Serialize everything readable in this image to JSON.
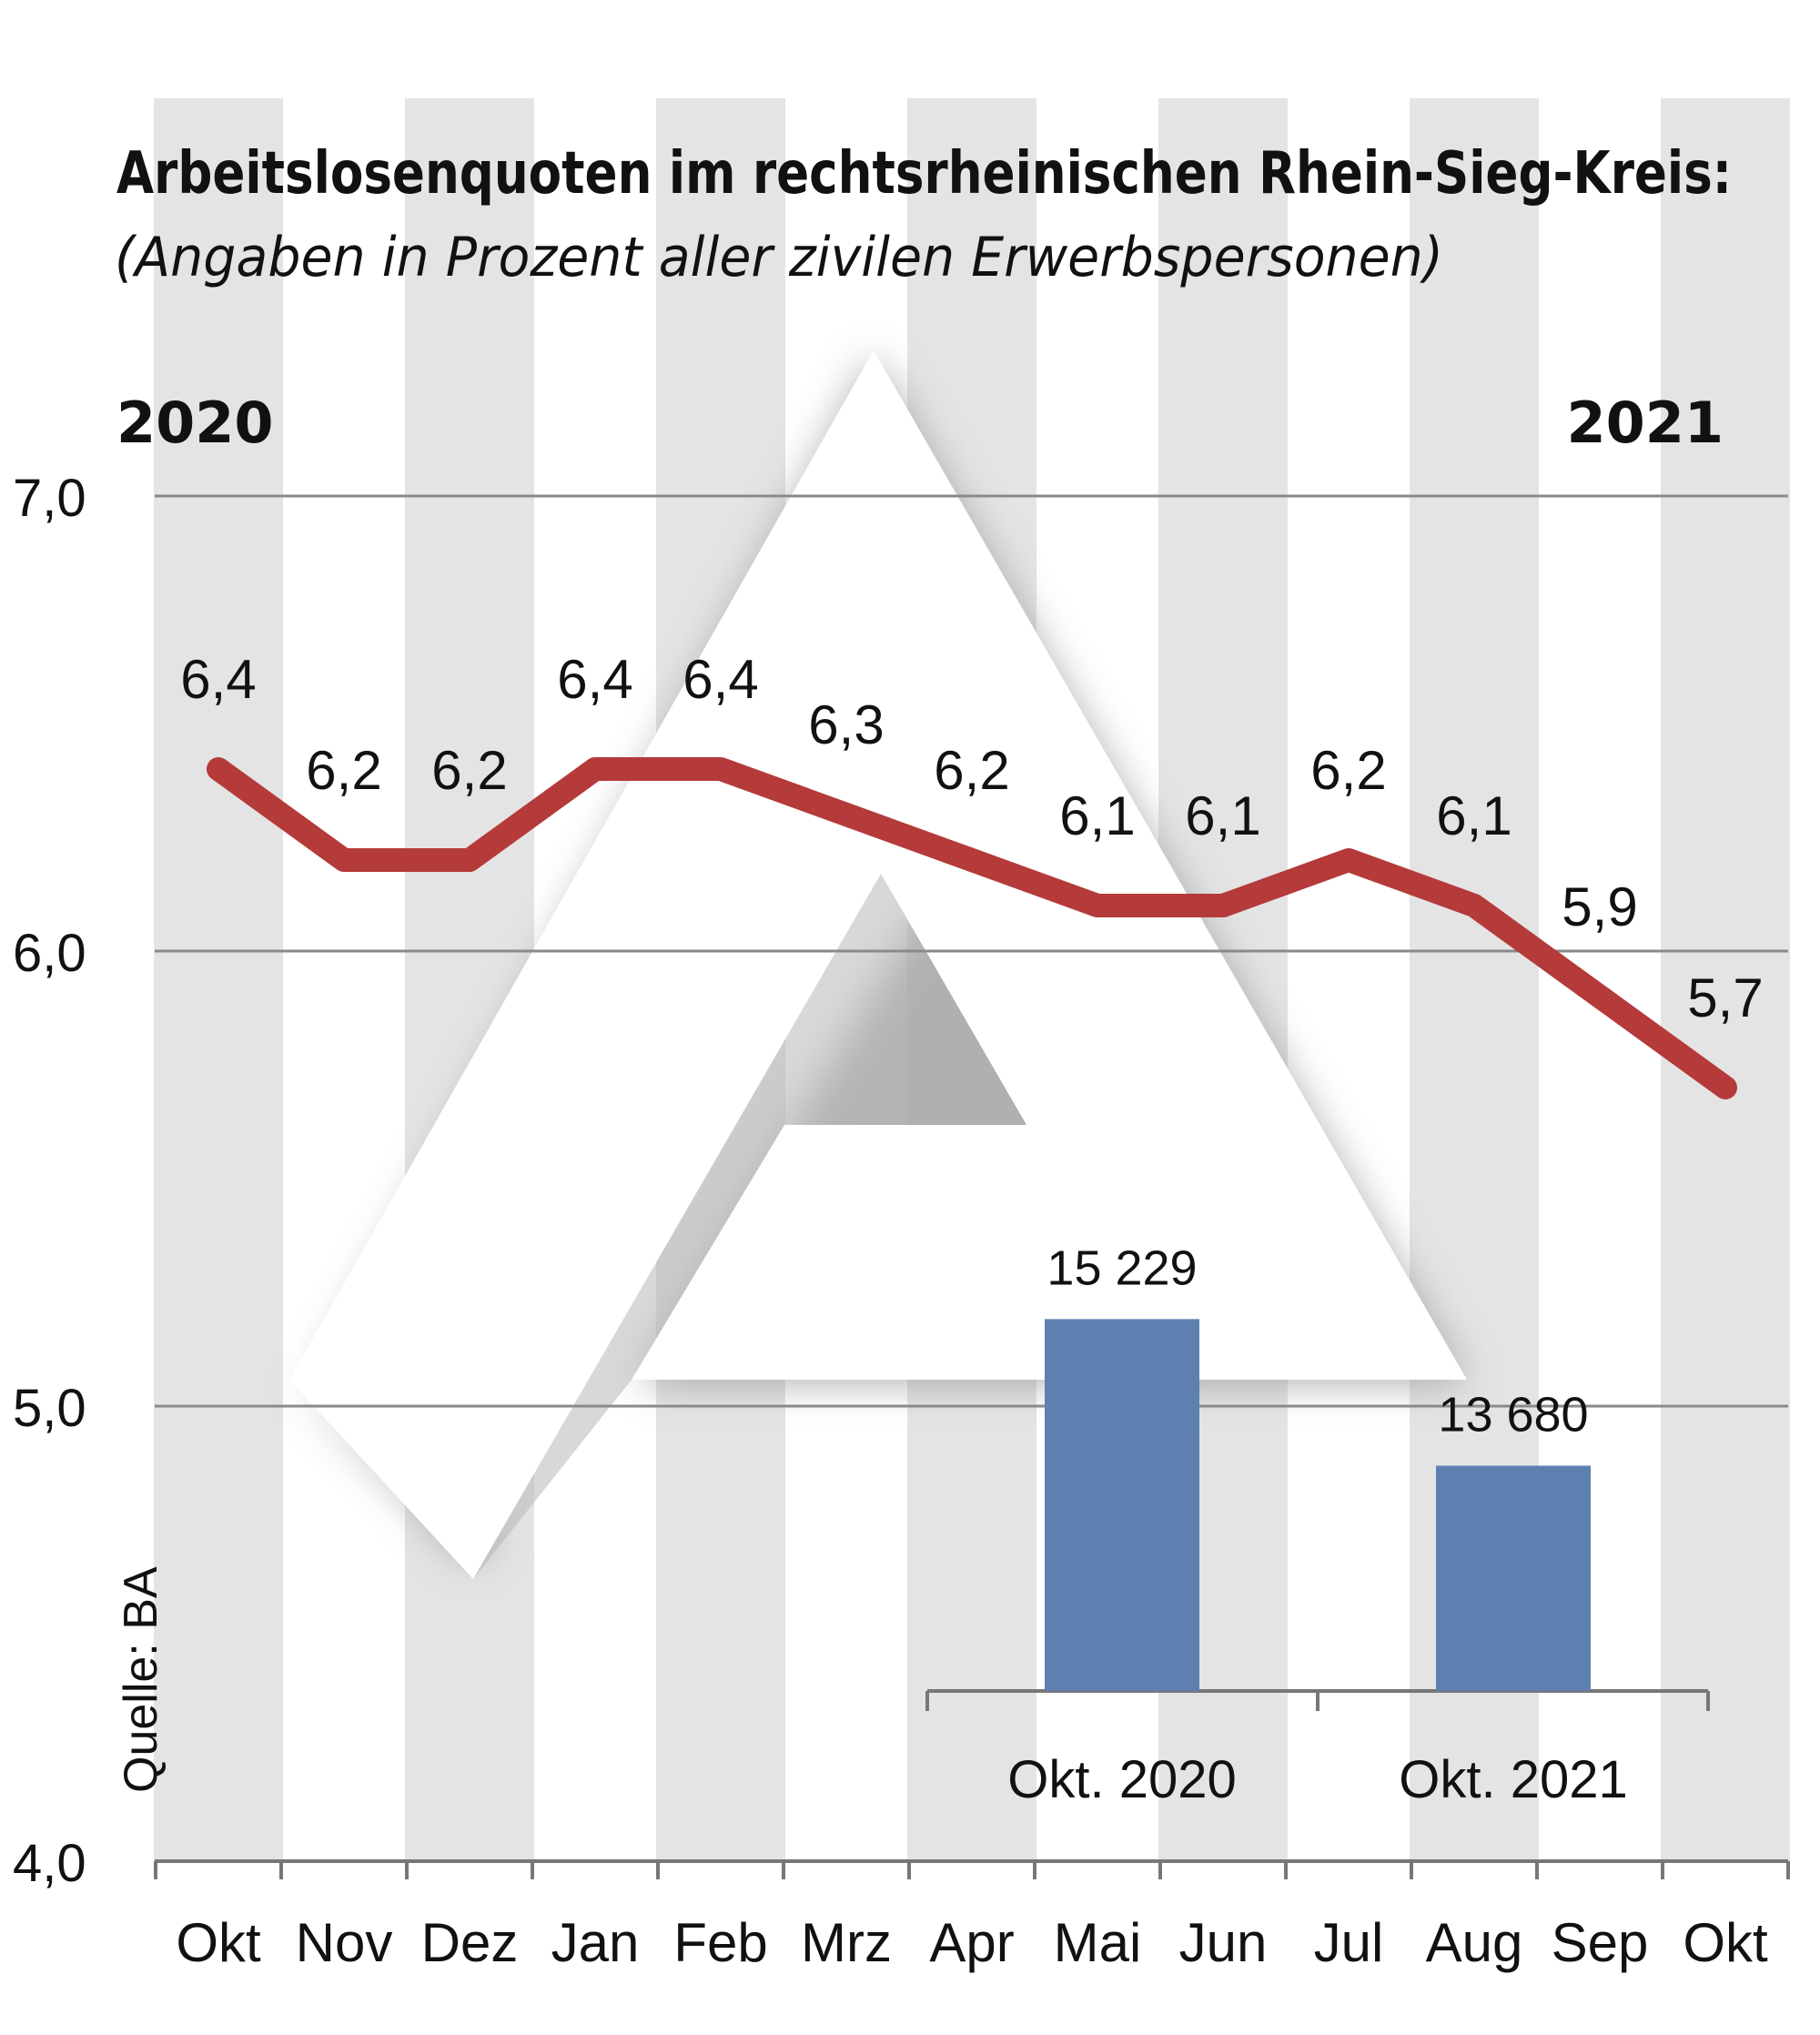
{
  "chart_data": {
    "type": "line",
    "title": "Arbeitslosenquoten im rechtsrheinischen Rhein-Sieg-Kreis:",
    "subtitle": "(Angaben in Prozent aller zivilen Erwerbspersonen)",
    "year_start": "2020",
    "year_end": "2021",
    "source": "Quelle: BA",
    "categories": [
      "Okt",
      "Nov",
      "Dez",
      "Jan",
      "Feb",
      "Mrz",
      "Apr",
      "Mai",
      "Jun",
      "Jul",
      "Aug",
      "Sep",
      "Okt"
    ],
    "series": [
      {
        "values": [
          6.4,
          6.2,
          6.2,
          6.4,
          6.4,
          6.3,
          6.2,
          6.1,
          6.1,
          6.2,
          6.1,
          5.9,
          5.7
        ],
        "labels": [
          "6,4",
          "6,2",
          "6,2",
          "6,4",
          "6,4",
          "6,3",
          "6,2",
          "6,1",
          "6,1",
          "6,2",
          "6,1",
          "5,9",
          "5,7"
        ],
        "color": "#b53a3a"
      }
    ],
    "yticks": [
      "4,0",
      "5,0",
      "6,0",
      "7,0"
    ],
    "ytick_values": [
      4.0,
      5.0,
      6.0,
      7.0
    ],
    "ylim": [
      4.0,
      7.0
    ],
    "grid": true,
    "stripe_color": "#e4e4e4",
    "inset": {
      "type": "bar",
      "categories": [
        "Okt. 2020",
        "Okt. 2021"
      ],
      "values": [
        15229,
        13680
      ],
      "labels": [
        "15 229",
        "13 680"
      ],
      "color": "#5e80b1"
    }
  }
}
